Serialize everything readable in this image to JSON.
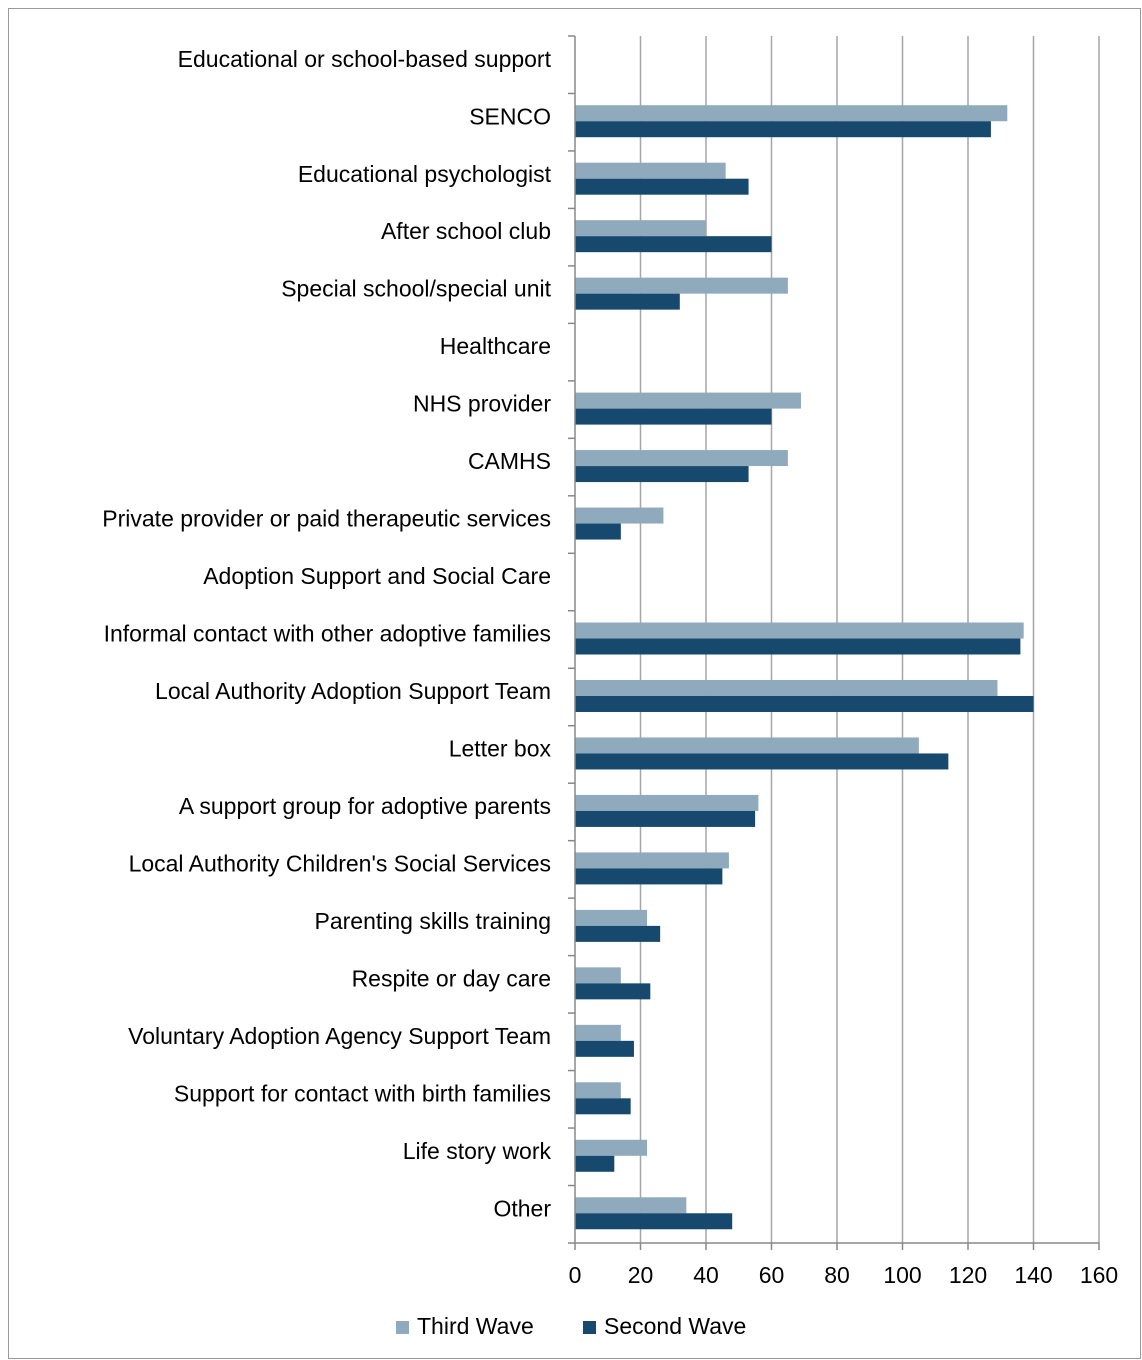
{
  "chart_data": {
    "type": "bar",
    "orientation": "horizontal",
    "categories": [
      "Educational or school-based support",
      "SENCO",
      "Educational psychologist",
      "After school club",
      "Special school/special unit",
      "Healthcare",
      "NHS provider",
      "CAMHS",
      "Private provider or paid therapeutic services",
      "Adoption Support and Social Care",
      "Informal contact with other adoptive families",
      "Local Authority Adoption Support Team",
      "Letter box",
      "A support group for adoptive parents",
      "Local Authority Children's Social Services",
      "Parenting skills training",
      "Respite or day care",
      "Voluntary Adoption Agency Support Team",
      "Support for contact with birth families",
      "Life story work",
      "Other"
    ],
    "series": [
      {
        "name": "Third Wave",
        "color": "#8faabd",
        "values": [
          null,
          132,
          46,
          40,
          65,
          null,
          69,
          65,
          27,
          null,
          137,
          129,
          105,
          56,
          47,
          22,
          14,
          14,
          14,
          22,
          34
        ]
      },
      {
        "name": "Second Wave",
        "color": "#17496e",
        "values": [
          null,
          127,
          53,
          60,
          32,
          null,
          60,
          53,
          14,
          null,
          136,
          140,
          114,
          55,
          45,
          26,
          23,
          18,
          17,
          12,
          48
        ]
      }
    ],
    "xlim": [
      0,
      160
    ],
    "xticks": [
      0,
      20,
      40,
      60,
      80,
      100,
      120,
      140,
      160
    ],
    "grid": true,
    "legend": "bottom"
  }
}
